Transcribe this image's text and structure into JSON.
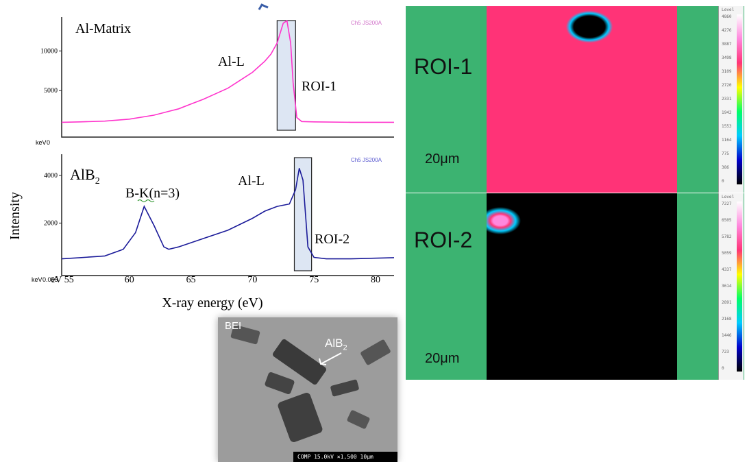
{
  "figure": {
    "ylabel": "Intensity",
    "xlabel": "X-ray energy (eV)"
  },
  "top_spectrum": {
    "title": "Al-Matrix",
    "watermark": "Ch5 JS200A",
    "peak_label": "Al-L",
    "roi_label": "ROI-1",
    "unit_label": "keV",
    "origin_label": "0",
    "line_color": "#ff33cc"
  },
  "bottom_spectrum": {
    "title_main": "AlB",
    "title_sub": "2",
    "watermark": "Ch5 JS200A",
    "peak1_label": "B-K(n=3)",
    "peak2_label": "Al-L",
    "roi_label": "ROI-2",
    "unit_label": "keV",
    "origin_label": "0.055",
    "line_color": "#1a1a99"
  },
  "chart_data": [
    {
      "type": "line",
      "title": "Al-Matrix",
      "xlabel": "",
      "ylabel": "Intensity",
      "xlim": [
        54.5,
        81.5
      ],
      "ylim": [
        0,
        14000
      ],
      "yticks": [
        10000,
        5000
      ],
      "roi": [
        72.0,
        73.5
      ],
      "series": [
        {
          "x": [
            54.5,
            56,
            58,
            60,
            62,
            64,
            65,
            66,
            67,
            68,
            69,
            70,
            71,
            71.5,
            72,
            72.5,
            72.8,
            73.1,
            73.3,
            73.6,
            74,
            75,
            78,
            81.5
          ],
          "y": [
            1000,
            1050,
            1150,
            1400,
            1900,
            2700,
            3300,
            3900,
            4600,
            5300,
            6300,
            7300,
            8700,
            9600,
            11000,
            13500,
            13800,
            11000,
            6000,
            1600,
            1100,
            1050,
            1000,
            1000
          ]
        }
      ]
    },
    {
      "type": "line",
      "title": "AlB2",
      "xlabel": "X-ray energy (eV)",
      "ylabel": "Intensity",
      "xlim": [
        54.5,
        81.5
      ],
      "ylim": [
        0,
        4800
      ],
      "xticks": [
        55,
        60,
        65,
        70,
        75,
        80
      ],
      "x_tick_labels": [
        "eV 55",
        "60",
        "65",
        "70",
        "75",
        "80"
      ],
      "yticks": [
        4000,
        2000
      ],
      "roi": [
        73.4,
        74.8
      ],
      "series": [
        {
          "x": [
            54.5,
            56,
            58,
            59.5,
            60.5,
            61.2,
            62,
            62.8,
            63.2,
            64,
            66,
            68,
            70,
            71,
            72,
            73,
            73.5,
            73.8,
            74.1,
            74.5,
            75,
            76,
            78,
            81.5
          ],
          "y": [
            500,
            550,
            620,
            900,
            1600,
            2700,
            1900,
            1000,
            900,
            1000,
            1350,
            1700,
            2200,
            2500,
            2700,
            2800,
            3400,
            4300,
            3800,
            1000,
            560,
            500,
            500,
            550
          ]
        }
      ]
    }
  ],
  "maps": {
    "roi1": {
      "label": "ROI-1",
      "scale": "20μm"
    },
    "roi2": {
      "label": "ROI-2",
      "scale": "20μm"
    },
    "scale_ticks_top": [
      "4860",
      "4276",
      "3887",
      "3498",
      "3109",
      "2720",
      "2331",
      "1942",
      "1553",
      "1164",
      "775",
      "386",
      "0"
    ],
    "scale_ticks_bottom": [
      "7227",
      "6505",
      "5782",
      "5059",
      "4337",
      "3614",
      "2891",
      "2168",
      "1446",
      "723",
      "0"
    ],
    "level_label": "Level"
  },
  "bei": {
    "label": "BEI",
    "phase_main": "AlB",
    "phase_sub": "2",
    "footer": "COMP 15.0kV ×1,500 10μm"
  }
}
